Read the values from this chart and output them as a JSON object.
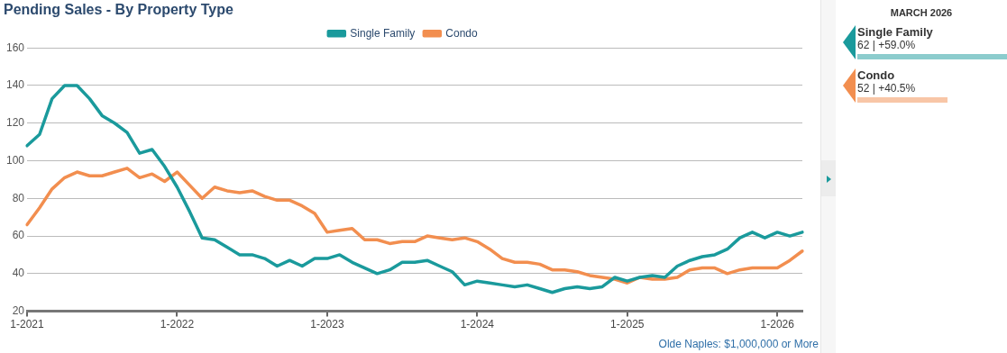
{
  "chart_data": {
    "type": "line",
    "title": "Pending Sales - By Property Type",
    "categories": [
      "1-2021",
      null,
      null,
      null,
      null,
      null,
      null,
      null,
      null,
      null,
      null,
      null,
      "1-2022",
      null,
      null,
      null,
      null,
      null,
      null,
      null,
      null,
      null,
      null,
      null,
      "1-2023",
      null,
      null,
      null,
      null,
      null,
      null,
      null,
      null,
      null,
      null,
      null,
      "1-2024",
      null,
      null,
      null,
      null,
      null,
      null,
      null,
      null,
      null,
      null,
      null,
      "1-2025",
      null,
      null,
      null,
      null,
      null,
      null,
      null,
      null,
      null,
      null,
      null,
      "1-2026",
      null,
      null
    ],
    "series": [
      {
        "name": "Single Family",
        "color": "#1a9a9c",
        "values": [
          108,
          114,
          133,
          140,
          140,
          133,
          124,
          120,
          115,
          104,
          106,
          97,
          86,
          73,
          59,
          58,
          54,
          50,
          50,
          48,
          44,
          47,
          44,
          48,
          48,
          50,
          46,
          43,
          40,
          42,
          46,
          46,
          47,
          44,
          41,
          34,
          36,
          35,
          34,
          33,
          34,
          32,
          30,
          32,
          33,
          32,
          33,
          38,
          36,
          38,
          39,
          38,
          44,
          47,
          49,
          50,
          53,
          59,
          62,
          59,
          62,
          60,
          62
        ]
      },
      {
        "name": "Condo",
        "color": "#f28e4f",
        "values": [
          66,
          75,
          85,
          91,
          94,
          92,
          92,
          94,
          96,
          91,
          93,
          89,
          94,
          87,
          80,
          86,
          84,
          83,
          84,
          81,
          79,
          79,
          76,
          72,
          62,
          63,
          64,
          58,
          58,
          56,
          57,
          57,
          60,
          59,
          58,
          59,
          57,
          53,
          48,
          46,
          46,
          45,
          42,
          42,
          41,
          39,
          38,
          37,
          35,
          38,
          37,
          37,
          38,
          42,
          43,
          43,
          40,
          42,
          43,
          43,
          43,
          47,
          52
        ]
      }
    ],
    "ylim": [
      20,
      160
    ],
    "yticks": [
      20,
      40,
      60,
      80,
      100,
      120,
      140,
      160
    ],
    "grid": "y",
    "legend": "top",
    "marker": "none",
    "line_style": "solid",
    "annotations": [
      "MARCH 2026",
      "62 | +59.0%",
      "52 | +40.5%",
      "Olde Naples: $1,000,000 or More"
    ]
  }
}
